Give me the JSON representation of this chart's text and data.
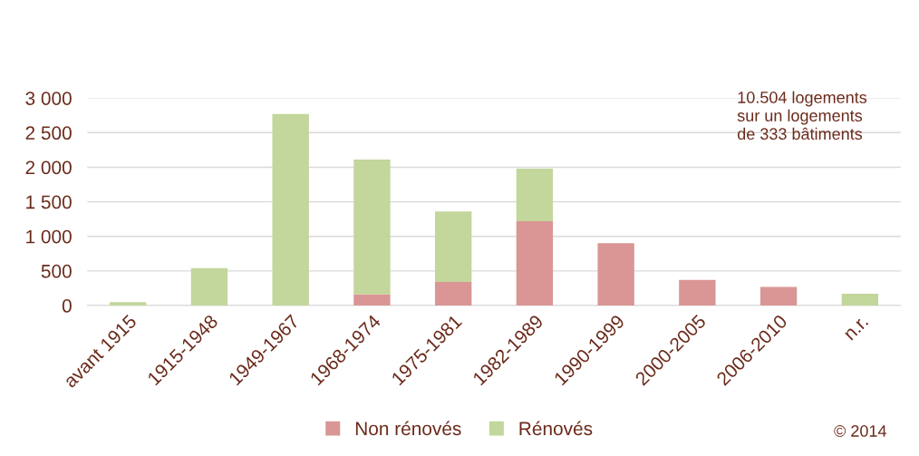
{
  "chart_data": {
    "type": "bar",
    "stacked": true,
    "categories": [
      "avant 1915",
      "1915-1948",
      "1949-1967",
      "1968-1974",
      "1975-1981",
      "1982-1989",
      "1990-1999",
      "2000-2005",
      "2006-2010",
      "n.r."
    ],
    "series": [
      {
        "name": "Non rénovés",
        "color": "#d99694",
        "values": [
          0,
          0,
          0,
          160,
          340,
          1220,
          900,
          370,
          270,
          0
        ]
      },
      {
        "name": "Rénovés",
        "color": "#c3d69b",
        "values": [
          50,
          540,
          2770,
          1950,
          1020,
          760,
          0,
          0,
          0,
          170
        ]
      }
    ],
    "ylim": [
      0,
      3000
    ],
    "yticks": [
      0,
      {
        "value": 500,
        "label": "500"
      },
      {
        "value": 1000,
        "label": "1 000"
      },
      {
        "value": 1500,
        "label": "1 500"
      },
      {
        "value": 2000,
        "label": "2 000"
      },
      {
        "value": 2500,
        "label": "2 500"
      },
      {
        "value": 3000,
        "label": "3 000"
      }
    ],
    "grid": "y",
    "legend": "bottom",
    "annotations": [
      "10.504 logements\nsur un logements\nde 333 bâtiments",
      "© 2014"
    ]
  }
}
